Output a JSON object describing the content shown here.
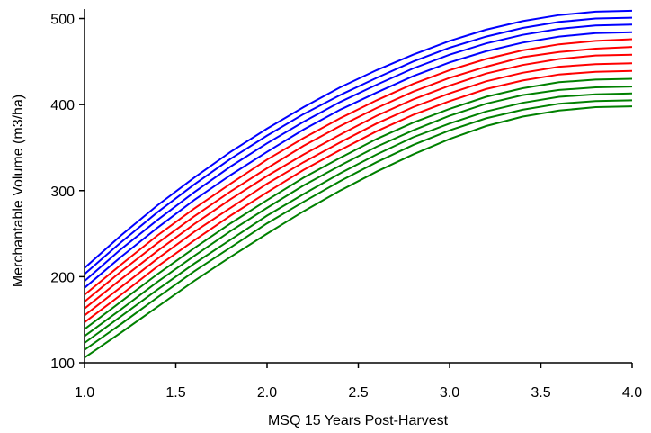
{
  "chart_data": {
    "type": "line",
    "title": "",
    "xlabel": "MSQ 15 Years Post-Harvest",
    "ylabel": "Merchantable Volume (m3/ha)",
    "xlim": [
      1.0,
      4.0
    ],
    "ylim": [
      100,
      510
    ],
    "x_ticks": [
      "1.0",
      "1.5",
      "2.0",
      "2.5",
      "3.0",
      "3.5",
      "4.0"
    ],
    "y_ticks": [
      "100",
      "200",
      "300",
      "400",
      "500"
    ],
    "grid": false,
    "legend": "none",
    "x": [
      1.0,
      1.2,
      1.4,
      1.6,
      1.8,
      2.0,
      2.2,
      2.4,
      2.6,
      2.8,
      3.0,
      3.2,
      3.4,
      3.6,
      3.8,
      4.0
    ],
    "series": [
      {
        "color": "#0000ff",
        "values": [
          210,
          248,
          283,
          315,
          345,
          372,
          397,
          420,
          440,
          458,
          474,
          487,
          497,
          504,
          508,
          509
        ]
      },
      {
        "color": "#0000ff",
        "values": [
          203,
          240,
          275,
          307,
          337,
          364,
          389,
          411,
          431,
          450,
          466,
          479,
          489,
          496,
          500,
          501
        ]
      },
      {
        "color": "#0000ff",
        "values": [
          195,
          232,
          266,
          298,
          328,
          355,
          380,
          403,
          423,
          442,
          458,
          471,
          481,
          488,
          492,
          493
        ]
      },
      {
        "color": "#0000ff",
        "values": [
          187,
          223,
          257,
          289,
          318,
          345,
          371,
          394,
          414,
          433,
          449,
          462,
          472,
          479,
          483,
          484
        ]
      },
      {
        "color": "#ff0000",
        "values": [
          179,
          214,
          248,
          279,
          308,
          336,
          361,
          384,
          405,
          424,
          440,
          453,
          463,
          470,
          474,
          476
        ]
      },
      {
        "color": "#ff0000",
        "values": [
          171,
          206,
          239,
          270,
          299,
          326,
          352,
          375,
          396,
          415,
          431,
          444,
          455,
          461,
          465,
          467
        ]
      },
      {
        "color": "#ff0000",
        "values": [
          163,
          197,
          230,
          261,
          290,
          317,
          342,
          365,
          387,
          406,
          422,
          436,
          446,
          453,
          457,
          458
        ]
      },
      {
        "color": "#ff0000",
        "values": [
          155,
          188,
          221,
          252,
          280,
          308,
          333,
          356,
          378,
          397,
          413,
          427,
          437,
          444,
          447,
          448
        ]
      },
      {
        "color": "#ff0000",
        "values": [
          147,
          179,
          212,
          242,
          271,
          298,
          324,
          347,
          369,
          388,
          404,
          418,
          428,
          435,
          438,
          439
        ]
      },
      {
        "color": "#008000",
        "values": [
          139,
          171,
          203,
          233,
          262,
          289,
          315,
          338,
          360,
          379,
          395,
          409,
          419,
          426,
          429,
          430
        ]
      },
      {
        "color": "#008000",
        "values": [
          131,
          162,
          194,
          224,
          253,
          280,
          306,
          329,
          351,
          370,
          387,
          401,
          411,
          417,
          420,
          421
        ]
      },
      {
        "color": "#008000",
        "values": [
          123,
          154,
          185,
          215,
          243,
          271,
          296,
          320,
          342,
          362,
          378,
          392,
          402,
          409,
          412,
          413
        ]
      },
      {
        "color": "#008000",
        "values": [
          115,
          145,
          176,
          206,
          234,
          262,
          287,
          311,
          333,
          353,
          370,
          384,
          394,
          401,
          404,
          405
        ]
      },
      {
        "color": "#008000",
        "values": [
          106,
          135,
          165,
          195,
          223,
          250,
          276,
          300,
          322,
          342,
          360,
          375,
          386,
          393,
          397,
          398
        ]
      }
    ]
  }
}
